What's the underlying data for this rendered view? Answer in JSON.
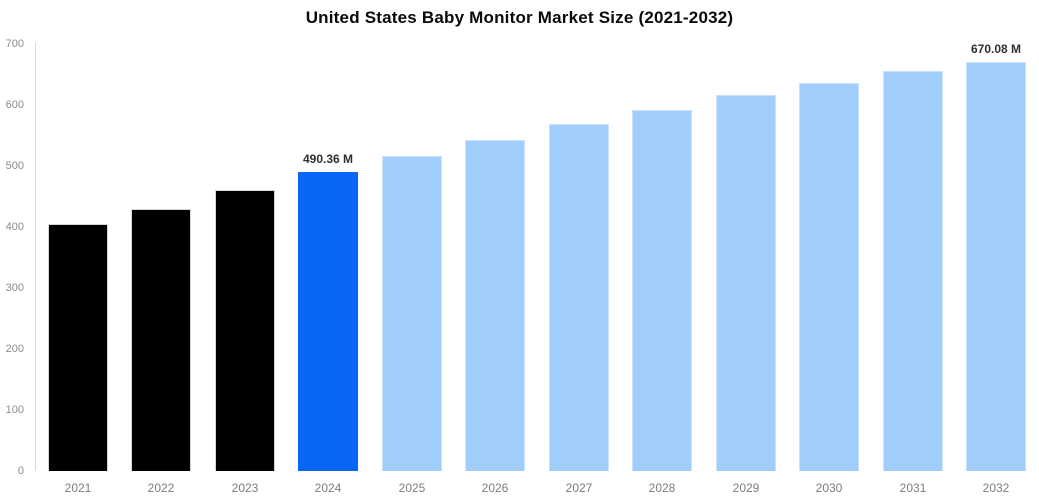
{
  "title": "United States Baby Monitor Market Size (2021-2032)",
  "chart_data": {
    "type": "bar",
    "title": "United States Baby Monitor Market Size (2021-2032)",
    "categories": [
      "2021",
      "2022",
      "2023",
      "2024",
      "2025",
      "2026",
      "2027",
      "2028",
      "2029",
      "2030",
      "2031",
      "2032"
    ],
    "values": [
      405,
      430,
      460,
      490.36,
      516,
      543,
      569,
      592,
      616,
      636,
      655,
      670.08
    ],
    "value_unit": "M",
    "data_labels": {
      "2024": "490.36 M",
      "2032": "670.08 M"
    },
    "xlabel": "",
    "ylabel": "",
    "ylim": [
      0,
      700
    ],
    "yticks": [
      0,
      100,
      200,
      300,
      400,
      500,
      600,
      700
    ],
    "grid": false,
    "legend_position": "none",
    "bar_groups": [
      "historical",
      "historical",
      "historical",
      "highlight",
      "forecast",
      "forecast",
      "forecast",
      "forecast",
      "forecast",
      "forecast",
      "forecast",
      "forecast"
    ],
    "palette": {
      "historical": {
        "fill": "#000000",
        "border": "#d6d6d6"
      },
      "highlight": {
        "fill": "#0866f7",
        "border": "#0866f7"
      },
      "forecast": {
        "fill": "#a0cdfa",
        "border": "#c9e2fc"
      }
    },
    "axis_line_color": "#d9d9d9",
    "tick_label_color": "#8c8c8c",
    "data_label_color": "#303030"
  }
}
